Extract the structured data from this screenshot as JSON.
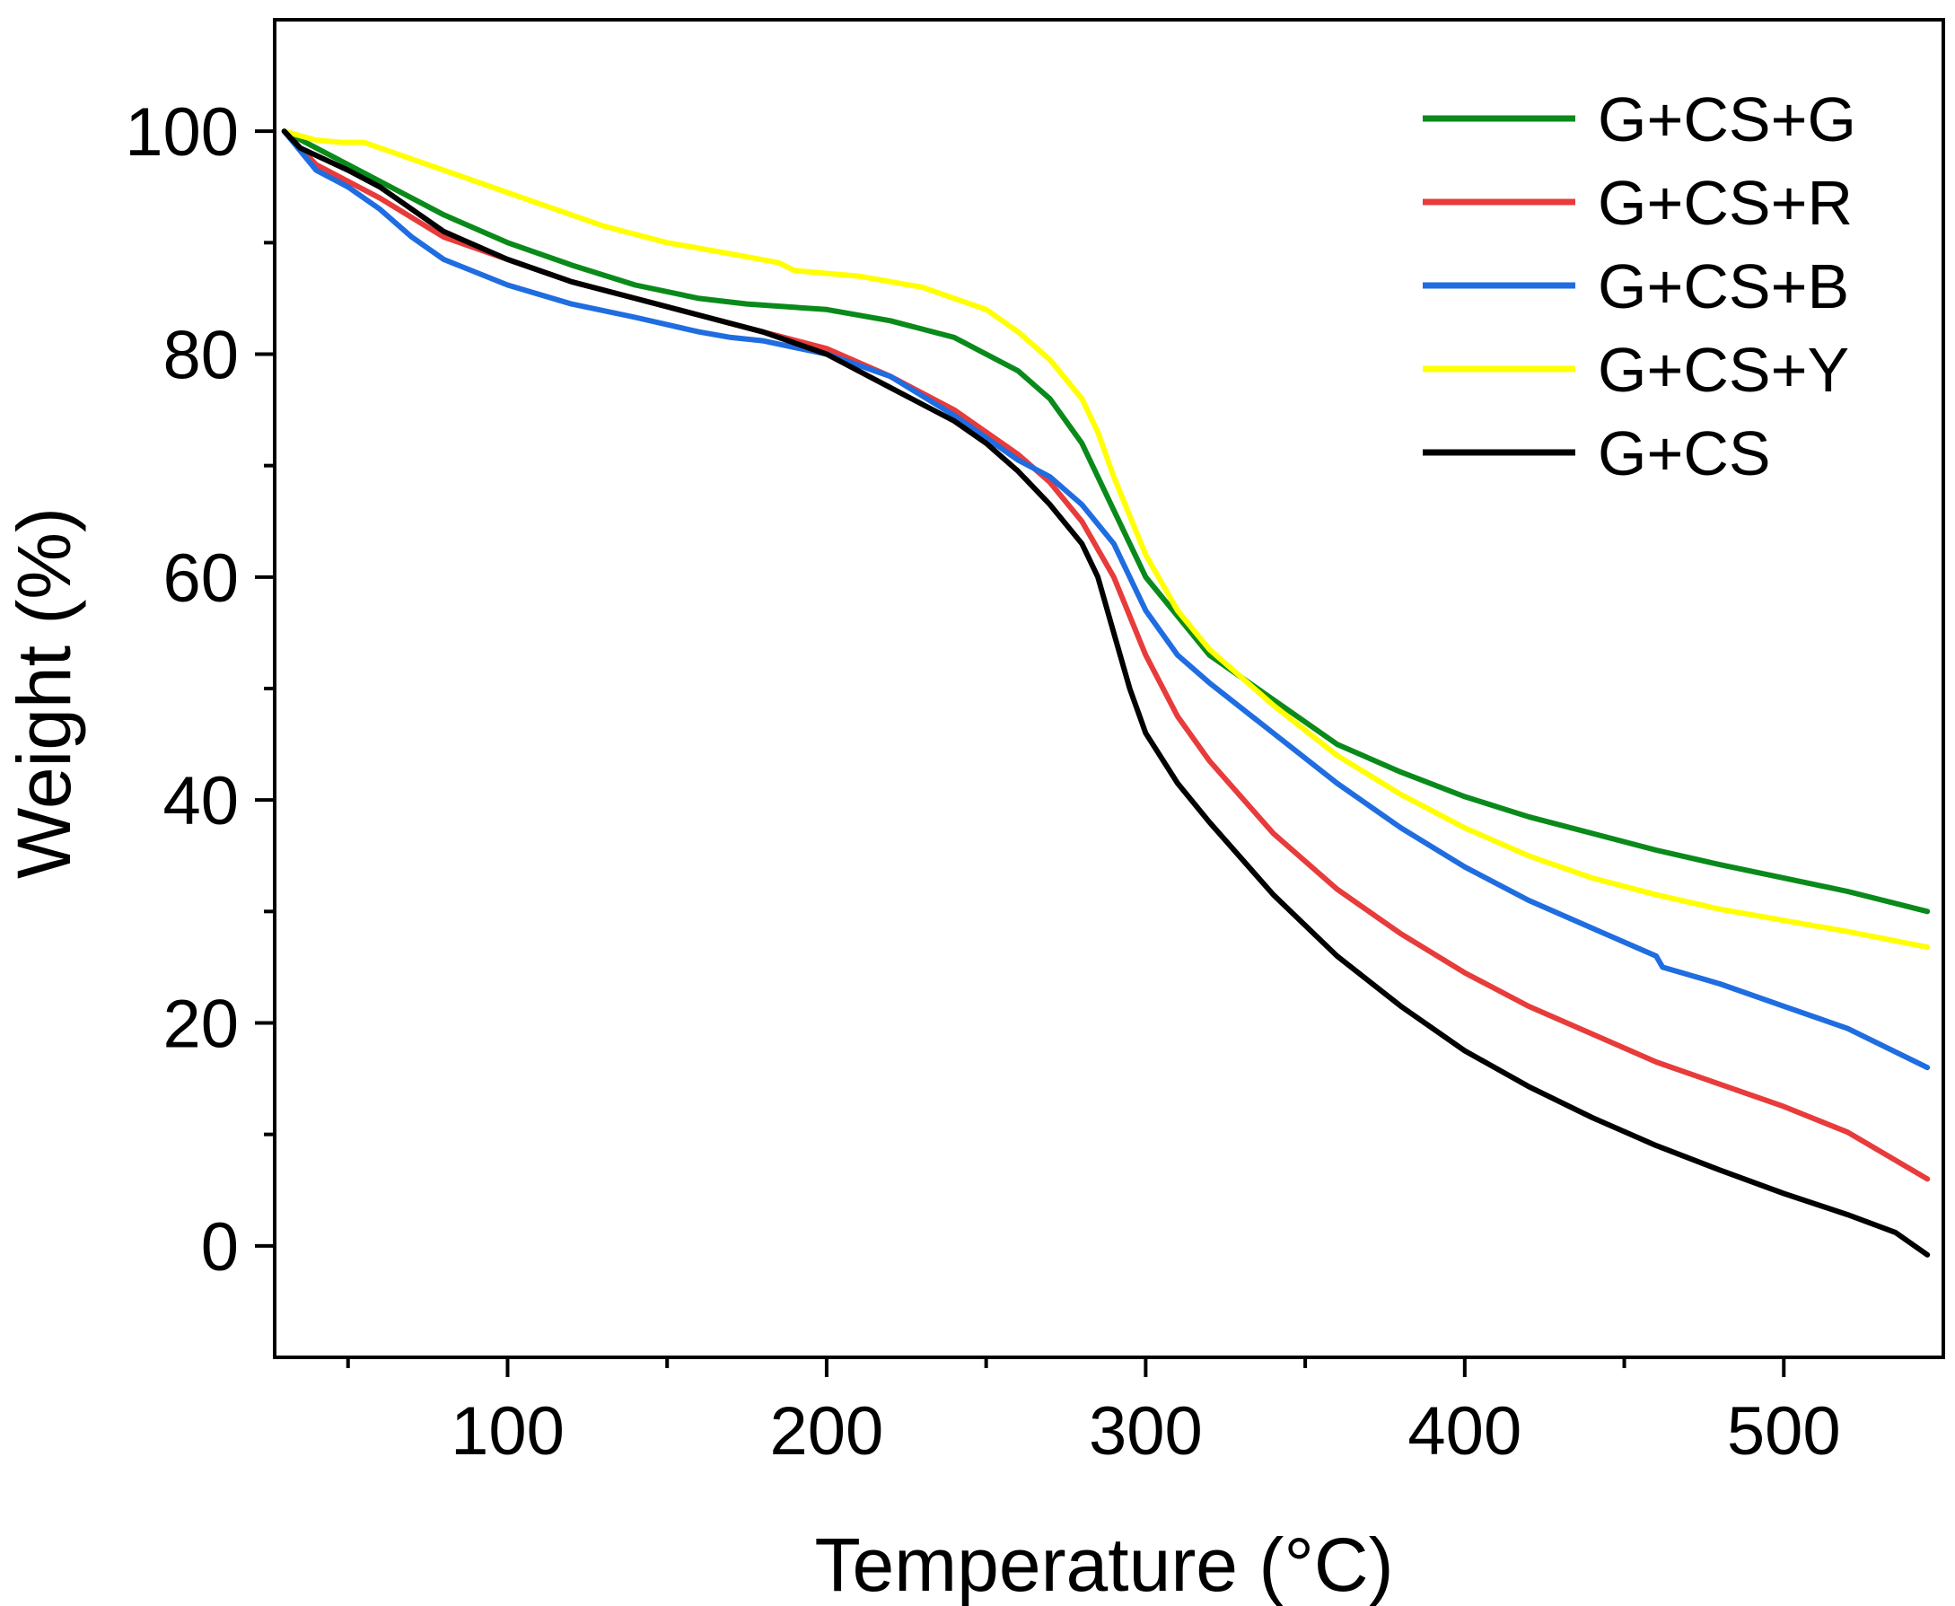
{
  "chart_data": {
    "type": "line",
    "title": "",
    "xlabel": "Temperature (°C)",
    "ylabel": "Weight (%)",
    "xlim": [
      27,
      550
    ],
    "ylim": [
      -10,
      110
    ],
    "xticks": [
      100,
      200,
      300,
      400,
      500
    ],
    "yticks": [
      0,
      20,
      40,
      60,
      80,
      100
    ],
    "legend_position": "top-right",
    "grid": false,
    "series": [
      {
        "name": "G+CS+G",
        "color": "#0a8a1a",
        "points": [
          [
            30,
            100
          ],
          [
            50,
            97
          ],
          [
            60,
            95.5
          ],
          [
            80,
            92.5
          ],
          [
            100,
            90
          ],
          [
            120,
            88
          ],
          [
            140,
            86.2
          ],
          [
            160,
            85
          ],
          [
            175,
            84.5
          ],
          [
            200,
            84
          ],
          [
            220,
            83
          ],
          [
            240,
            81.5
          ],
          [
            260,
            78.5
          ],
          [
            270,
            76
          ],
          [
            280,
            72
          ],
          [
            290,
            66
          ],
          [
            300,
            60
          ],
          [
            320,
            53
          ],
          [
            340,
            49
          ],
          [
            360,
            45
          ],
          [
            380,
            42.5
          ],
          [
            400,
            40.3
          ],
          [
            420,
            38.5
          ],
          [
            440,
            37
          ],
          [
            460,
            35.5
          ],
          [
            480,
            34.2
          ],
          [
            500,
            33
          ],
          [
            520,
            31.8
          ],
          [
            545,
            30
          ]
        ]
      },
      {
        "name": "G+CS+R",
        "color": "#e83b3b",
        "points": [
          [
            30,
            100
          ],
          [
            40,
            97
          ],
          [
            60,
            94
          ],
          [
            80,
            90.5
          ],
          [
            100,
            88.5
          ],
          [
            120,
            86.5
          ],
          [
            140,
            85
          ],
          [
            160,
            83.5
          ],
          [
            180,
            82
          ],
          [
            200,
            80.5
          ],
          [
            220,
            78
          ],
          [
            240,
            75
          ],
          [
            260,
            71
          ],
          [
            270,
            68.5
          ],
          [
            280,
            65
          ],
          [
            290,
            60
          ],
          [
            300,
            53
          ],
          [
            310,
            47.5
          ],
          [
            320,
            43.5
          ],
          [
            340,
            37
          ],
          [
            360,
            32
          ],
          [
            380,
            28
          ],
          [
            400,
            24.5
          ],
          [
            420,
            21.5
          ],
          [
            440,
            19
          ],
          [
            460,
            16.5
          ],
          [
            480,
            14.5
          ],
          [
            500,
            12.5
          ],
          [
            520,
            10.2
          ],
          [
            545,
            6
          ]
        ]
      },
      {
        "name": "G+CS+B",
        "color": "#1f6de0",
        "points": [
          [
            30,
            100
          ],
          [
            40,
            96.5
          ],
          [
            50,
            95
          ],
          [
            60,
            93
          ],
          [
            70,
            90.5
          ],
          [
            80,
            88.5
          ],
          [
            100,
            86.2
          ],
          [
            120,
            84.5
          ],
          [
            140,
            83.3
          ],
          [
            160,
            82
          ],
          [
            170,
            81.5
          ],
          [
            180,
            81.2
          ],
          [
            200,
            80
          ],
          [
            220,
            78
          ],
          [
            240,
            74.5
          ],
          [
            260,
            70.5
          ],
          [
            270,
            69
          ],
          [
            280,
            66.5
          ],
          [
            290,
            63
          ],
          [
            300,
            57
          ],
          [
            310,
            53
          ],
          [
            320,
            50.5
          ],
          [
            340,
            46
          ],
          [
            360,
            41.5
          ],
          [
            380,
            37.5
          ],
          [
            400,
            34
          ],
          [
            420,
            31
          ],
          [
            440,
            28.5
          ],
          [
            460,
            26
          ],
          [
            462,
            25
          ],
          [
            480,
            23.5
          ],
          [
            500,
            21.5
          ],
          [
            520,
            19.5
          ],
          [
            545,
            16
          ]
        ]
      },
      {
        "name": "G+CS+Y",
        "color": "#ffff00",
        "points": [
          [
            30,
            100
          ],
          [
            40,
            99.2
          ],
          [
            48,
            99
          ],
          [
            55,
            99
          ],
          [
            70,
            97.5
          ],
          [
            90,
            95.5
          ],
          [
            110,
            93.5
          ],
          [
            130,
            91.5
          ],
          [
            150,
            90
          ],
          [
            170,
            89
          ],
          [
            185,
            88.2
          ],
          [
            190,
            87.5
          ],
          [
            210,
            87
          ],
          [
            230,
            86
          ],
          [
            250,
            84
          ],
          [
            260,
            82
          ],
          [
            270,
            79.5
          ],
          [
            280,
            76
          ],
          [
            285,
            73
          ],
          [
            290,
            69
          ],
          [
            300,
            62
          ],
          [
            310,
            57
          ],
          [
            320,
            53.5
          ],
          [
            340,
            48.5
          ],
          [
            360,
            44
          ],
          [
            380,
            40.5
          ],
          [
            400,
            37.5
          ],
          [
            420,
            35
          ],
          [
            440,
            33
          ],
          [
            460,
            31.5
          ],
          [
            480,
            30.2
          ],
          [
            500,
            29.2
          ],
          [
            520,
            28.2
          ],
          [
            545,
            26.8
          ]
        ]
      },
      {
        "name": "G+CS",
        "color": "#000000",
        "points": [
          [
            30,
            100
          ],
          [
            35,
            98.5
          ],
          [
            50,
            96.5
          ],
          [
            60,
            95
          ],
          [
            70,
            93
          ],
          [
            80,
            91
          ],
          [
            100,
            88.5
          ],
          [
            120,
            86.5
          ],
          [
            140,
            85
          ],
          [
            160,
            83.5
          ],
          [
            180,
            82
          ],
          [
            200,
            80
          ],
          [
            220,
            77
          ],
          [
            240,
            74
          ],
          [
            250,
            72
          ],
          [
            260,
            69.5
          ],
          [
            270,
            66.5
          ],
          [
            280,
            63
          ],
          [
            285,
            60
          ],
          [
            290,
            55
          ],
          [
            295,
            50
          ],
          [
            300,
            46
          ],
          [
            310,
            41.5
          ],
          [
            320,
            38
          ],
          [
            340,
            31.5
          ],
          [
            360,
            26
          ],
          [
            380,
            21.5
          ],
          [
            400,
            17.5
          ],
          [
            420,
            14.3
          ],
          [
            440,
            11.5
          ],
          [
            460,
            9
          ],
          [
            480,
            6.8
          ],
          [
            500,
            4.7
          ],
          [
            520,
            2.8
          ],
          [
            535,
            1.2
          ],
          [
            545,
            -0.8
          ]
        ]
      }
    ]
  }
}
